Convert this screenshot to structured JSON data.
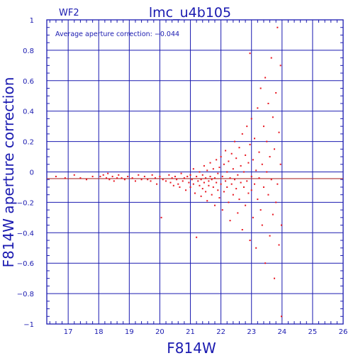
{
  "chart_data": {
    "type": "scatter",
    "title": "lmc_u4b105",
    "panel_label": "WF2",
    "xlabel": "F814W",
    "ylabel": "F814W aperture correction",
    "annotation": "Average aperture correction: −0.044",
    "average_correction": -0.044,
    "xlim": [
      16.3,
      26
    ],
    "ylim": [
      -1,
      1
    ],
    "x_ticks": [
      17,
      18,
      19,
      20,
      21,
      22,
      23,
      24,
      25,
      26
    ],
    "y_ticks": [
      -1,
      -0.8,
      -0.6,
      -0.4,
      -0.2,
      0,
      0.2,
      0.4,
      0.6,
      0.8,
      1
    ],
    "x_tick_labels": [
      "17",
      "18",
      "19",
      "20",
      "21",
      "22",
      "23",
      "24",
      "25",
      "26"
    ],
    "y_tick_labels": [
      "−1",
      "−0.8",
      "−0.6",
      "−0.4",
      "−0.2",
      "0",
      "0.2",
      "0.4",
      "0.6",
      "0.8",
      "1"
    ],
    "grid": true,
    "colors": {
      "axes": "#1a1ab0",
      "points": "#e8141e",
      "average_line": "#b03030"
    },
    "points": [
      [
        16.6,
        -0.03
      ],
      [
        16.9,
        -0.04
      ],
      [
        17.2,
        -0.02
      ],
      [
        17.4,
        -0.04
      ],
      [
        17.6,
        -0.05
      ],
      [
        17.8,
        -0.03
      ],
      [
        18.05,
        -0.03
      ],
      [
        18.15,
        -0.02
      ],
      [
        18.25,
        -0.04
      ],
      [
        18.3,
        -0.01
      ],
      [
        18.35,
        -0.05
      ],
      [
        18.45,
        -0.03
      ],
      [
        18.5,
        -0.06
      ],
      [
        18.6,
        -0.04
      ],
      [
        18.65,
        -0.02
      ],
      [
        18.75,
        -0.04
      ],
      [
        18.85,
        -0.05
      ],
      [
        18.95,
        -0.03
      ],
      [
        19.1,
        -0.04
      ],
      [
        19.2,
        -0.06
      ],
      [
        19.3,
        -0.02
      ],
      [
        19.4,
        -0.05
      ],
      [
        19.5,
        -0.03
      ],
      [
        19.6,
        -0.05
      ],
      [
        19.7,
        -0.06
      ],
      [
        19.75,
        -0.02
      ],
      [
        19.85,
        -0.04
      ],
      [
        19.9,
        -0.08
      ],
      [
        20.0,
        -0.03
      ],
      [
        20.05,
        -0.3
      ],
      [
        20.1,
        -0.05
      ],
      [
        20.2,
        -0.06
      ],
      [
        20.3,
        -0.02
      ],
      [
        20.35,
        -0.07
      ],
      [
        20.4,
        -0.04
      ],
      [
        20.45,
        -0.09
      ],
      [
        20.5,
        -0.03
      ],
      [
        20.55,
        -0.05
      ],
      [
        20.6,
        -0.08
      ],
      [
        20.65,
        -0.1
      ],
      [
        20.7,
        -0.01
      ],
      [
        20.75,
        -0.06
      ],
      [
        20.8,
        -0.04
      ],
      [
        20.85,
        -0.12
      ],
      [
        20.9,
        -0.03
      ],
      [
        20.95,
        -0.07
      ],
      [
        21.0,
        -0.02
      ],
      [
        21.0,
        -0.1
      ],
      [
        21.05,
        -0.05
      ],
      [
        21.1,
        0.02
      ],
      [
        21.1,
        -0.08
      ],
      [
        21.15,
        -0.14
      ],
      [
        21.2,
        -0.03
      ],
      [
        21.2,
        -0.43
      ],
      [
        21.25,
        -0.06
      ],
      [
        21.3,
        0.0
      ],
      [
        21.3,
        -0.09
      ],
      [
        21.35,
        -0.05
      ],
      [
        21.35,
        -0.16
      ],
      [
        21.4,
        -0.02
      ],
      [
        21.4,
        -0.11
      ],
      [
        21.45,
        0.04
      ],
      [
        21.45,
        -0.07
      ],
      [
        21.5,
        -0.04
      ],
      [
        21.5,
        -0.13
      ],
      [
        21.55,
        0.01
      ],
      [
        21.55,
        -0.19
      ],
      [
        21.6,
        -0.06
      ],
      [
        21.6,
        -0.09
      ],
      [
        21.65,
        0.06
      ],
      [
        21.65,
        -0.03
      ],
      [
        21.7,
        -0.15
      ],
      [
        21.7,
        -0.05
      ],
      [
        21.75,
        0.02
      ],
      [
        21.75,
        -0.1
      ],
      [
        21.8,
        -0.22
      ],
      [
        21.8,
        -0.04
      ],
      [
        21.85,
        0.08
      ],
      [
        21.85,
        -0.07
      ],
      [
        21.9,
        -0.12
      ],
      [
        21.9,
        -0.01
      ],
      [
        21.95,
        0.03
      ],
      [
        21.95,
        -0.17
      ],
      [
        22.0,
        -0.08
      ],
      [
        22.0,
        0.1
      ],
      [
        22.05,
        -0.03
      ],
      [
        22.05,
        -0.25
      ],
      [
        22.1,
        0.05
      ],
      [
        22.1,
        -0.13
      ],
      [
        22.15,
        -0.06
      ],
      [
        22.15,
        0.14
      ],
      [
        22.2,
        -0.1
      ],
      [
        22.2,
        0.0
      ],
      [
        22.25,
        -0.2
      ],
      [
        22.25,
        0.07
      ],
      [
        22.3,
        -0.04
      ],
      [
        22.3,
        -0.32
      ],
      [
        22.35,
        0.12
      ],
      [
        22.35,
        -0.08
      ],
      [
        22.4,
        0.02
      ],
      [
        22.4,
        -0.15
      ],
      [
        22.45,
        0.2
      ],
      [
        22.45,
        -0.05
      ],
      [
        22.5,
        -0.11
      ],
      [
        22.5,
        0.09
      ],
      [
        22.55,
        -0.27
      ],
      [
        22.55,
        -0.02
      ],
      [
        22.6,
        0.16
      ],
      [
        22.6,
        -0.18
      ],
      [
        22.65,
        -0.07
      ],
      [
        22.65,
        0.04
      ],
      [
        22.7,
        0.25
      ],
      [
        22.7,
        -0.38
      ],
      [
        22.75,
        -0.1
      ],
      [
        22.75,
        0.0
      ],
      [
        22.8,
        0.11
      ],
      [
        22.8,
        -0.22
      ],
      [
        22.85,
        0.3
      ],
      [
        22.85,
        -0.06
      ],
      [
        22.9,
        -0.14
      ],
      [
        22.9,
        0.06
      ],
      [
        22.95,
        0.78
      ],
      [
        22.95,
        -0.45
      ],
      [
        22.95,
        0.18
      ],
      [
        23.0,
        -0.03
      ],
      [
        23.0,
        -0.12
      ],
      [
        23.0,
        0.35
      ],
      [
        23.05,
        0.08
      ],
      [
        23.05,
        -0.3
      ],
      [
        23.1,
        0.22
      ],
      [
        23.1,
        -0.08
      ],
      [
        23.15,
        0.01
      ],
      [
        23.15,
        -0.5
      ],
      [
        23.2,
        0.42
      ],
      [
        23.2,
        -0.18
      ],
      [
        23.25,
        0.13
      ],
      [
        23.25,
        -0.04
      ],
      [
        23.3,
        0.55
      ],
      [
        23.3,
        -0.25
      ],
      [
        23.35,
        0.05
      ],
      [
        23.35,
        -0.35
      ],
      [
        23.4,
        0.3
      ],
      [
        23.4,
        -0.1
      ],
      [
        23.45,
        0.62
      ],
      [
        23.45,
        -0.6
      ],
      [
        23.5,
        0.0
      ],
      [
        23.5,
        0.2
      ],
      [
        23.55,
        -0.15
      ],
      [
        23.55,
        0.45
      ],
      [
        23.6,
        -0.42
      ],
      [
        23.6,
        0.1
      ],
      [
        23.65,
        0.75
      ],
      [
        23.65,
        -0.05
      ],
      [
        23.7,
        -0.28
      ],
      [
        23.7,
        0.36
      ],
      [
        23.75,
        -0.7
      ],
      [
        23.75,
        0.15
      ],
      [
        23.8,
        0.52
      ],
      [
        23.8,
        -0.2
      ],
      [
        23.85,
        0.95
      ],
      [
        23.85,
        -0.08
      ],
      [
        23.9,
        0.26
      ],
      [
        23.9,
        -0.48
      ],
      [
        23.95,
        0.05
      ],
      [
        23.95,
        0.7
      ],
      [
        23.98,
        -0.35
      ],
      [
        23.98,
        -0.95
      ]
    ]
  }
}
